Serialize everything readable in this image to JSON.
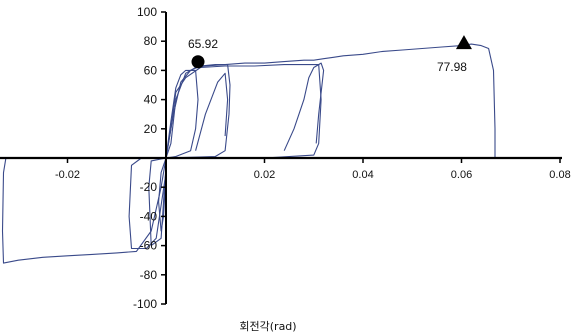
{
  "chart_data": {
    "type": "line",
    "title": "",
    "xlabel": "회전각(rad)",
    "ylabel": "",
    "xlim": [
      -0.035,
      0.08
    ],
    "ylim": [
      -100,
      100
    ],
    "x_ticks": [
      -0.02,
      0.02,
      0.04,
      0.06,
      0.08
    ],
    "x_tick_labels": [
      "-0.02",
      "0.02",
      "0.04",
      "0.06",
      "0.08"
    ],
    "y_ticks": [
      100,
      80,
      60,
      40,
      20,
      -20,
      -40,
      -60,
      -80,
      -100
    ],
    "y_tick_labels": [
      "100",
      "80",
      "60",
      "40",
      "20",
      "-20",
      "-40",
      "-60",
      "-80",
      "-100"
    ],
    "grid": false,
    "legend": "none",
    "line_color": "#3a4a8a",
    "annotations": [
      {
        "label": "65.92",
        "x": 0.0065,
        "y": 65.92,
        "marker": "circle"
      },
      {
        "label": "77.98",
        "x": 0.0605,
        "y": 77.98,
        "marker": "triangle"
      }
    ],
    "series": [
      {
        "values": [
          [
            0,
            0
          ],
          [
            0.001,
            10
          ],
          [
            0.002,
            40
          ],
          [
            0.004,
            58
          ],
          [
            0.006,
            62
          ],
          [
            0.008,
            63
          ],
          [
            0.012,
            64
          ],
          [
            0.016,
            65
          ],
          [
            0.02,
            65
          ],
          [
            0.024,
            66
          ],
          [
            0.028,
            67
          ],
          [
            0.03,
            67
          ],
          [
            0.032,
            68
          ],
          [
            0.034,
            69
          ],
          [
            0.036,
            70
          ],
          [
            0.04,
            71
          ],
          [
            0.044,
            73
          ],
          [
            0.048,
            74
          ],
          [
            0.052,
            75
          ],
          [
            0.056,
            76
          ],
          [
            0.06,
            77
          ],
          [
            0.062,
            78
          ],
          [
            0.064,
            77
          ],
          [
            0.0655,
            75
          ],
          [
            0.0665,
            60
          ],
          [
            0.0668,
            20
          ],
          [
            0.0668,
            0
          ],
          [
            0.03,
            0
          ],
          [
            0,
            0
          ],
          [
            -0.01,
            0
          ],
          [
            -0.02,
            0
          ],
          [
            -0.0325,
            0
          ],
          [
            -0.033,
            -10
          ],
          [
            -0.0332,
            -50
          ],
          [
            -0.033,
            -72
          ],
          [
            -0.03,
            -70
          ],
          [
            -0.025,
            -68
          ],
          [
            -0.02,
            -67
          ],
          [
            -0.015,
            -66
          ],
          [
            -0.01,
            -65
          ],
          [
            -0.006,
            -64
          ],
          [
            -0.003,
            -50
          ],
          [
            -0.001,
            -20
          ],
          [
            0,
            0
          ]
        ]
      },
      {
        "values": [
          [
            0,
            0
          ],
          [
            0.001,
            20
          ],
          [
            0.002,
            45
          ],
          [
            0.004,
            55
          ],
          [
            0.007,
            62
          ],
          [
            0.012,
            63
          ],
          [
            0.018,
            63
          ],
          [
            0.024,
            64
          ],
          [
            0.028,
            64
          ],
          [
            0.031,
            64
          ],
          [
            0.0315,
            40
          ],
          [
            0.031,
            10
          ],
          [
            0.03,
            2
          ],
          [
            0.02,
            0
          ],
          [
            0,
            0
          ],
          [
            -0.005,
            0
          ],
          [
            -0.007,
            -5
          ],
          [
            -0.0075,
            -40
          ],
          [
            -0.007,
            -62
          ],
          [
            -0.004,
            -62
          ],
          [
            -0.002,
            -55
          ],
          [
            0,
            -10
          ],
          [
            0,
            0
          ]
        ]
      },
      {
        "values": [
          [
            0,
            0
          ],
          [
            0.0015,
            30
          ],
          [
            0.003,
            52
          ],
          [
            0.005,
            60
          ],
          [
            0.007,
            63
          ],
          [
            0.01,
            64
          ],
          [
            0.0125,
            64
          ],
          [
            0.013,
            50
          ],
          [
            0.0128,
            30
          ],
          [
            0.012,
            5
          ],
          [
            0.01,
            1
          ],
          [
            0,
            0
          ],
          [
            -0.003,
            -2
          ],
          [
            -0.0035,
            -20
          ],
          [
            -0.003,
            -60
          ],
          [
            -0.001,
            -55
          ],
          [
            0,
            -5
          ]
        ]
      },
      {
        "values": [
          [
            0,
            0
          ],
          [
            0.001,
            25
          ],
          [
            0.002,
            48
          ],
          [
            0.003,
            57
          ],
          [
            0.004,
            60
          ],
          [
            0.006,
            60
          ],
          [
            0.0065,
            40
          ],
          [
            0.006,
            20
          ],
          [
            0.005,
            5
          ],
          [
            0.002,
            1
          ],
          [
            0,
            0
          ],
          [
            -0.001,
            -10
          ],
          [
            -0.0015,
            -30
          ],
          [
            -0.001,
            -50
          ],
          [
            -0.0005,
            -40
          ],
          [
            0,
            -10
          ]
        ]
      },
      {
        "values": [
          [
            0.024,
            5
          ],
          [
            0.026,
            20
          ],
          [
            0.028,
            40
          ],
          [
            0.029,
            55
          ],
          [
            0.03,
            62
          ],
          [
            0.0315,
            65
          ],
          [
            0.032,
            60
          ],
          [
            0.031,
            30
          ],
          [
            0.0305,
            10
          ]
        ]
      },
      {
        "values": [
          [
            0.006,
            5
          ],
          [
            0.008,
            30
          ],
          [
            0.0105,
            52
          ],
          [
            0.012,
            58
          ],
          [
            0.0125,
            40
          ],
          [
            0.012,
            15
          ]
        ]
      }
    ]
  }
}
